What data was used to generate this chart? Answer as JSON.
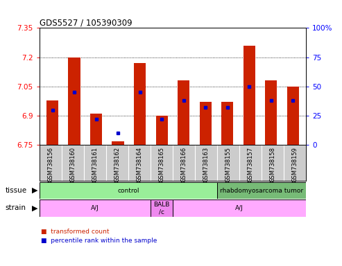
{
  "title": "GDS5527 / 105390309",
  "samples": [
    "GSM738156",
    "GSM738160",
    "GSM738161",
    "GSM738162",
    "GSM738164",
    "GSM738165",
    "GSM738166",
    "GSM738163",
    "GSM738155",
    "GSM738157",
    "GSM738158",
    "GSM738159"
  ],
  "transformed_count": [
    6.98,
    7.2,
    6.91,
    6.77,
    7.17,
    6.9,
    7.08,
    6.97,
    6.97,
    7.26,
    7.08,
    7.05
  ],
  "percentile_rank": [
    30,
    45,
    22,
    10,
    45,
    22,
    38,
    32,
    32,
    50,
    38,
    38
  ],
  "ymin": 6.75,
  "ymax": 7.35,
  "yticks": [
    6.75,
    6.9,
    7.05,
    7.2,
    7.35
  ],
  "ytick_labels": [
    "6.75",
    "6.9",
    "7.05",
    "7.2",
    "7.35"
  ],
  "y2ticks": [
    0,
    25,
    50,
    75,
    100
  ],
  "y2tick_labels": [
    "0",
    "25",
    "50",
    "75",
    "100%"
  ],
  "bar_color": "#cc2200",
  "blue_color": "#0000cc",
  "tissue_groups": [
    {
      "label": "control",
      "start": 0,
      "end": 8,
      "color": "#99ee99"
    },
    {
      "label": "rhabdomyosarcoma tumor",
      "start": 8,
      "end": 12,
      "color": "#77bb77"
    }
  ],
  "strain_groups": [
    {
      "label": "A/J",
      "start": 0,
      "end": 5,
      "color": "#ffaaff"
    },
    {
      "label": "BALB\n/c",
      "start": 5,
      "end": 6,
      "color": "#ee88ee"
    },
    {
      "label": "A/J",
      "start": 6,
      "end": 12,
      "color": "#ffaaff"
    }
  ],
  "tissue_label": "tissue",
  "strain_label": "strain",
  "legend_red": "transformed count",
  "legend_blue": "percentile rank within the sample"
}
